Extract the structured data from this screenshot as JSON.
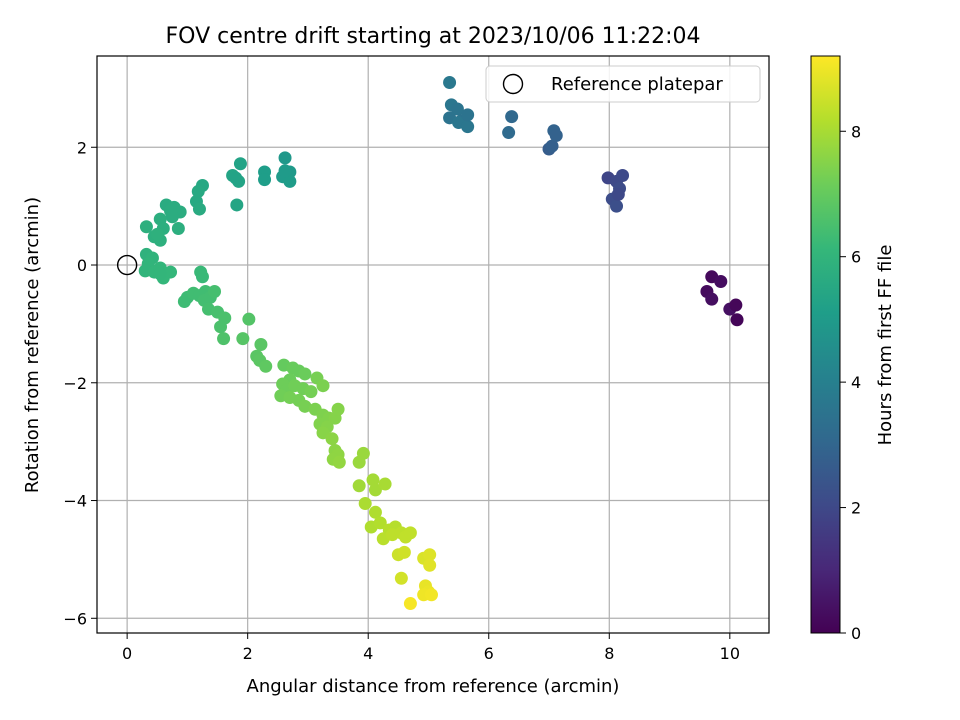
{
  "chart_data": {
    "type": "scatter",
    "title": "FOV centre drift starting at 2023/10/06 11:22:04",
    "xlabel": "Angular distance from reference (arcmin)",
    "ylabel": "Rotation from reference (arcmin)",
    "xlim": [
      -0.5,
      10.65
    ],
    "ylim": [
      -6.25,
      3.55
    ],
    "xticks": [
      0,
      2,
      4,
      6,
      8,
      10
    ],
    "yticks": [
      -6,
      -4,
      -2,
      0,
      2
    ],
    "grid": true,
    "colormap": "viridis",
    "colorbar": {
      "label": "Hours from first FF file",
      "range": [
        0,
        9.2
      ],
      "ticks": [
        0,
        2,
        4,
        6,
        8
      ]
    },
    "legend": {
      "position": "upper-right",
      "entries": [
        {
          "label": "Reference platepar",
          "marker": "open-circle"
        }
      ]
    },
    "reference_point": {
      "x": 0,
      "y": 0
    },
    "points": [
      [
        9.7,
        -0.2,
        0.2
      ],
      [
        9.85,
        -0.28,
        0.3
      ],
      [
        9.62,
        -0.45,
        0.25
      ],
      [
        9.7,
        -0.58,
        0.35
      ],
      [
        10.0,
        -0.75,
        0.4
      ],
      [
        10.1,
        -0.68,
        0.15
      ],
      [
        10.12,
        -0.93,
        0.1
      ],
      [
        7.98,
        1.48,
        1.9
      ],
      [
        8.12,
        1.42,
        2.0
      ],
      [
        8.22,
        1.52,
        2.05
      ],
      [
        8.17,
        1.3,
        2.1
      ],
      [
        8.05,
        1.12,
        2.15
      ],
      [
        8.12,
        1.0,
        2.2
      ],
      [
        8.15,
        1.2,
        2.0
      ],
      [
        7.0,
        1.97,
        2.7
      ],
      [
        7.05,
        2.02,
        2.8
      ],
      [
        7.08,
        2.28,
        2.9
      ],
      [
        7.12,
        2.2,
        2.85
      ],
      [
        6.33,
        2.25,
        3.2
      ],
      [
        6.38,
        2.52,
        3.1
      ],
      [
        5.35,
        3.1,
        3.7
      ],
      [
        5.38,
        2.72,
        3.6
      ],
      [
        5.48,
        2.65,
        3.55
      ],
      [
        5.35,
        2.5,
        3.5
      ],
      [
        5.55,
        2.45,
        3.45
      ],
      [
        5.5,
        2.42,
        3.6
      ],
      [
        5.65,
        2.35,
        3.6
      ],
      [
        5.65,
        2.55,
        3.5
      ],
      [
        2.62,
        1.82,
        4.9
      ],
      [
        2.7,
        1.58,
        4.95
      ],
      [
        2.58,
        1.5,
        5.0
      ],
      [
        2.7,
        1.42,
        5.05
      ],
      [
        2.28,
        1.58,
        5.1
      ],
      [
        2.28,
        1.45,
        5.1
      ],
      [
        2.62,
        1.6,
        5.0
      ],
      [
        1.88,
        1.72,
        5.3
      ],
      [
        1.75,
        1.52,
        5.35
      ],
      [
        1.85,
        1.42,
        5.35
      ],
      [
        1.82,
        1.02,
        5.4
      ],
      [
        1.8,
        1.48,
        5.3
      ],
      [
        1.25,
        1.35,
        5.5
      ],
      [
        1.18,
        1.25,
        5.55
      ],
      [
        1.15,
        1.08,
        5.55
      ],
      [
        1.2,
        0.95,
        5.6
      ],
      [
        0.65,
        1.02,
        5.65
      ],
      [
        0.78,
        0.98,
        5.7
      ],
      [
        0.88,
        0.9,
        5.7
      ],
      [
        0.75,
        0.82,
        5.7
      ],
      [
        0.55,
        0.78,
        5.75
      ],
      [
        0.6,
        0.62,
        5.75
      ],
      [
        0.85,
        0.62,
        5.75
      ],
      [
        0.32,
        0.65,
        5.8
      ],
      [
        0.45,
        0.48,
        5.8
      ],
      [
        0.55,
        0.42,
        5.8
      ],
      [
        0.5,
        0.52,
        5.85
      ],
      [
        0.72,
        0.92,
        5.7
      ],
      [
        0.32,
        0.18,
        5.9
      ],
      [
        0.42,
        0.12,
        5.95
      ],
      [
        0.35,
        0.02,
        6.0
      ],
      [
        0.3,
        -0.1,
        6.0
      ],
      [
        0.45,
        -0.12,
        6.05
      ],
      [
        0.55,
        -0.05,
        6.05
      ],
      [
        0.6,
        -0.22,
        6.1
      ],
      [
        0.72,
        -0.12,
        6.1
      ],
      [
        0.55,
        -0.15,
        6.05
      ],
      [
        1.22,
        -0.12,
        6.2
      ],
      [
        1.25,
        -0.2,
        6.2
      ],
      [
        1.0,
        -0.55,
        6.3
      ],
      [
        0.95,
        -0.62,
        6.3
      ],
      [
        1.1,
        -0.48,
        6.35
      ],
      [
        1.2,
        -0.52,
        6.35
      ],
      [
        1.3,
        -0.45,
        6.35
      ],
      [
        1.28,
        -0.6,
        6.4
      ],
      [
        1.38,
        -0.55,
        6.4
      ],
      [
        1.45,
        -0.45,
        6.45
      ],
      [
        1.35,
        -0.75,
        6.45
      ],
      [
        1.5,
        -0.8,
        6.5
      ],
      [
        1.55,
        -1.05,
        6.55
      ],
      [
        1.62,
        -0.9,
        6.55
      ],
      [
        1.6,
        -1.25,
        6.6
      ],
      [
        2.02,
        -0.92,
        6.7
      ],
      [
        1.92,
        -1.25,
        6.75
      ],
      [
        2.15,
        -1.55,
        6.8
      ],
      [
        2.22,
        -1.35,
        6.8
      ],
      [
        2.2,
        -1.62,
        6.85
      ],
      [
        2.3,
        -1.72,
        6.9
      ],
      [
        2.6,
        -1.7,
        7.0
      ],
      [
        2.75,
        -1.75,
        7.05
      ],
      [
        2.85,
        -1.8,
        7.05
      ],
      [
        2.95,
        -1.85,
        7.1
      ],
      [
        2.7,
        -1.95,
        7.1
      ],
      [
        2.58,
        -2.02,
        7.15
      ],
      [
        2.65,
        -2.12,
        7.15
      ],
      [
        2.55,
        -2.22,
        7.2
      ],
      [
        2.78,
        -2.05,
        7.2
      ],
      [
        2.92,
        -2.1,
        7.2
      ],
      [
        3.05,
        -2.15,
        7.25
      ],
      [
        2.85,
        -2.3,
        7.25
      ],
      [
        2.95,
        -2.4,
        7.3
      ],
      [
        2.7,
        -2.25,
        7.25
      ],
      [
        3.15,
        -1.92,
        7.3
      ],
      [
        3.25,
        -2.05,
        7.35
      ],
      [
        3.12,
        -2.45,
        7.35
      ],
      [
        3.25,
        -2.55,
        7.4
      ],
      [
        3.2,
        -2.7,
        7.45
      ],
      [
        3.35,
        -2.6,
        7.45
      ],
      [
        3.45,
        -2.6,
        7.5
      ],
      [
        3.5,
        -2.45,
        7.5
      ],
      [
        3.32,
        -2.75,
        7.5
      ],
      [
        3.25,
        -2.85,
        7.55
      ],
      [
        3.4,
        -2.95,
        7.6
      ],
      [
        3.45,
        -3.15,
        7.6
      ],
      [
        3.5,
        -3.22,
        7.65
      ],
      [
        3.42,
        -3.3,
        7.65
      ],
      [
        3.52,
        -3.35,
        7.7
      ],
      [
        3.85,
        -3.35,
        7.8
      ],
      [
        3.92,
        -3.2,
        7.8
      ],
      [
        3.85,
        -3.75,
        7.9
      ],
      [
        4.08,
        -3.65,
        7.95
      ],
      [
        4.12,
        -3.82,
        7.95
      ],
      [
        4.28,
        -3.72,
        8.0
      ],
      [
        3.95,
        -4.05,
        8.05
      ],
      [
        4.12,
        -4.2,
        8.1
      ],
      [
        4.05,
        -4.45,
        8.1
      ],
      [
        4.2,
        -4.38,
        8.15
      ],
      [
        4.35,
        -4.5,
        8.2
      ],
      [
        4.45,
        -4.45,
        8.2
      ],
      [
        4.25,
        -4.65,
        8.25
      ],
      [
        4.4,
        -4.58,
        8.3
      ],
      [
        4.55,
        -4.55,
        8.3
      ],
      [
        4.62,
        -4.62,
        8.35
      ],
      [
        4.7,
        -4.55,
        8.35
      ],
      [
        4.5,
        -4.92,
        8.5
      ],
      [
        4.6,
        -4.88,
        8.55
      ],
      [
        4.55,
        -5.32,
        8.6
      ],
      [
        4.92,
        -4.98,
        8.7
      ],
      [
        5.02,
        -4.92,
        8.75
      ],
      [
        5.02,
        -5.1,
        8.8
      ],
      [
        4.95,
        -5.45,
        8.9
      ],
      [
        5.0,
        -5.55,
        8.95
      ],
      [
        4.92,
        -5.6,
        9.0
      ],
      [
        5.05,
        -5.6,
        9.05
      ],
      [
        4.7,
        -5.75,
        9.1
      ]
    ]
  }
}
